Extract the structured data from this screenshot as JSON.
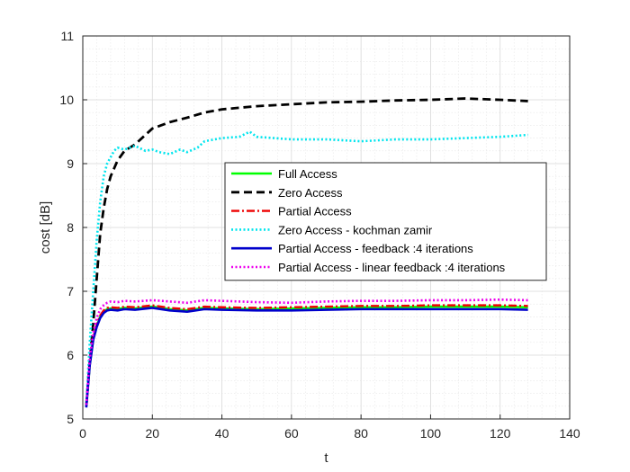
{
  "chart_data": {
    "type": "line",
    "title": "",
    "xlabel": "t",
    "ylabel": "cost [dB]",
    "xlim": [
      0,
      140
    ],
    "ylim": [
      5,
      11
    ],
    "xticks": [
      0,
      20,
      40,
      60,
      80,
      100,
      120,
      140
    ],
    "yticks": [
      5,
      6,
      7,
      8,
      9,
      10,
      11
    ],
    "grid": true,
    "minor_grid": true,
    "legend_position": "center-right",
    "series": [
      {
        "name": "Full Access",
        "color": "#00ff00",
        "style": "solid",
        "x": [
          1,
          2,
          3,
          4,
          5,
          6,
          7,
          8,
          10,
          12,
          15,
          20,
          25,
          30,
          35,
          40,
          50,
          60,
          70,
          80,
          90,
          100,
          110,
          120,
          128
        ],
        "y": [
          5.2,
          5.85,
          6.25,
          6.45,
          6.6,
          6.68,
          6.72,
          6.73,
          6.72,
          6.74,
          6.73,
          6.76,
          6.72,
          6.7,
          6.74,
          6.73,
          6.72,
          6.73,
          6.74,
          6.75,
          6.75,
          6.76,
          6.76,
          6.76,
          6.75
        ]
      },
      {
        "name": "Zero Access",
        "color": "#000000",
        "style": "dashed",
        "x": [
          1,
          2,
          3,
          4,
          5,
          6,
          7,
          8,
          10,
          12,
          15,
          20,
          25,
          30,
          35,
          40,
          50,
          60,
          70,
          80,
          90,
          100,
          110,
          120,
          128
        ],
        "y": [
          5.2,
          5.9,
          6.5,
          7.2,
          7.9,
          8.3,
          8.6,
          8.8,
          9.05,
          9.2,
          9.3,
          9.55,
          9.65,
          9.72,
          9.8,
          9.85,
          9.9,
          9.93,
          9.96,
          9.97,
          9.99,
          10.0,
          10.02,
          10.0,
          9.98
        ]
      },
      {
        "name": "Partial Access",
        "color": "#ee0000",
        "style": "dashdot",
        "x": [
          1,
          2,
          3,
          4,
          5,
          6,
          7,
          8,
          10,
          12,
          15,
          20,
          25,
          30,
          35,
          40,
          50,
          60,
          70,
          80,
          90,
          100,
          110,
          120,
          128
        ],
        "y": [
          5.2,
          5.86,
          6.27,
          6.48,
          6.62,
          6.7,
          6.74,
          6.75,
          6.74,
          6.76,
          6.75,
          6.78,
          6.74,
          6.72,
          6.76,
          6.75,
          6.74,
          6.75,
          6.76,
          6.77,
          6.77,
          6.78,
          6.78,
          6.78,
          6.77
        ]
      },
      {
        "name": "Zero Access - kochman zamir",
        "color": "#00e5ee",
        "style": "dotted",
        "x": [
          1,
          2,
          3,
          4,
          5,
          6,
          7,
          8,
          9,
          10,
          12,
          15,
          18,
          20,
          22,
          25,
          28,
          30,
          33,
          35,
          40,
          45,
          48,
          50,
          55,
          60,
          70,
          80,
          90,
          100,
          110,
          120,
          128
        ],
        "y": [
          5.2,
          6.2,
          7.0,
          7.8,
          8.4,
          8.8,
          9.0,
          9.1,
          9.2,
          9.25,
          9.22,
          9.28,
          9.2,
          9.22,
          9.18,
          9.15,
          9.22,
          9.18,
          9.25,
          9.35,
          9.4,
          9.42,
          9.5,
          9.42,
          9.4,
          9.38,
          9.38,
          9.35,
          9.38,
          9.38,
          9.4,
          9.42,
          9.45
        ]
      },
      {
        "name": "Partial Access - feedback :4 iterations",
        "color": "#0000cc",
        "style": "solid",
        "x": [
          1,
          2,
          3,
          4,
          5,
          6,
          7,
          8,
          10,
          12,
          15,
          20,
          25,
          30,
          35,
          40,
          50,
          60,
          70,
          80,
          90,
          100,
          110,
          120,
          128
        ],
        "y": [
          5.18,
          5.84,
          6.24,
          6.44,
          6.58,
          6.66,
          6.7,
          6.71,
          6.7,
          6.72,
          6.71,
          6.74,
          6.7,
          6.68,
          6.72,
          6.71,
          6.7,
          6.7,
          6.71,
          6.72,
          6.72,
          6.72,
          6.72,
          6.72,
          6.71
        ]
      },
      {
        "name": "Partial Access - linear feedback :4 iterations",
        "color": "#ee00ee",
        "style": "dotted",
        "x": [
          1,
          2,
          3,
          4,
          5,
          6,
          7,
          8,
          10,
          12,
          15,
          20,
          25,
          30,
          35,
          40,
          50,
          60,
          70,
          80,
          90,
          100,
          110,
          120,
          128
        ],
        "y": [
          5.22,
          5.95,
          6.35,
          6.58,
          6.72,
          6.78,
          6.82,
          6.84,
          6.83,
          6.85,
          6.84,
          6.86,
          6.84,
          6.82,
          6.86,
          6.85,
          6.83,
          6.82,
          6.84,
          6.85,
          6.85,
          6.86,
          6.86,
          6.87,
          6.86
        ]
      }
    ]
  }
}
